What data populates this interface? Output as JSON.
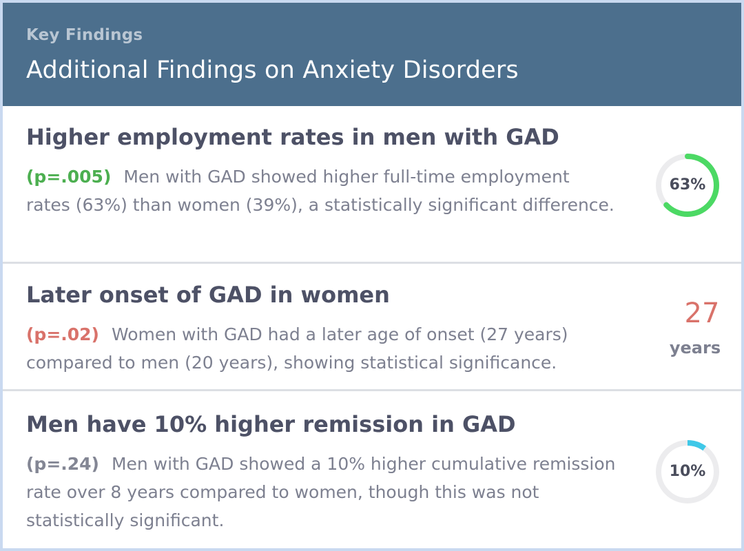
{
  "header": {
    "eyebrow": "Key Findings",
    "title": "Additional Findings on Anxiety Disorders"
  },
  "findings": [
    {
      "title": "Higher employment rates in men with GAD",
      "pvalue": "(p=.005)",
      "description": "Men with GAD showed higher full-time employment rates (63%) than women (39%), a statistically significant difference.",
      "metric": {
        "type": "ring",
        "label": "63%",
        "value": 0.63,
        "color": "#4cd964"
      }
    },
    {
      "title": "Later onset of GAD in women",
      "pvalue": "(p=.02)",
      "description": "Women with GAD had a later age of onset (27 years) compared to men (20 years), showing statistical significance.",
      "metric": {
        "type": "number",
        "value": "27",
        "unit": "years"
      }
    },
    {
      "title": "Men have 10% higher remission in GAD",
      "pvalue": "(p=.24)",
      "description": "Men with GAD showed a 10% higher cumulative remission rate over 8 years compared to women, though this was not statistically significant.",
      "metric": {
        "type": "ring",
        "label": "10%",
        "value": 0.1,
        "color": "#3fc8e8"
      }
    }
  ],
  "colors": {
    "header_bg": "#4c6f8d",
    "significant_green": "#4caf50",
    "significant_red": "#d9726a",
    "not_significant_gray": "#838694"
  }
}
